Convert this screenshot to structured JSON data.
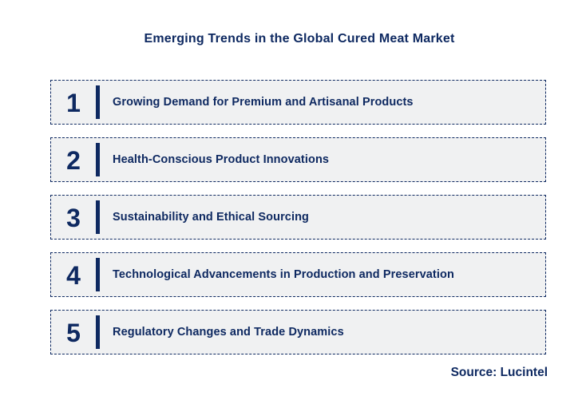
{
  "title": "Emerging Trends in the Global Cured Meat Market",
  "trends": [
    {
      "number": "1",
      "label": "Growing Demand for Premium and Artisanal Products"
    },
    {
      "number": "2",
      "label": "Health-Conscious Product Innovations"
    },
    {
      "number": "3",
      "label": "Sustainability and Ethical Sourcing"
    },
    {
      "number": "4",
      "label": "Technological Advancements in Production and Preservation"
    },
    {
      "number": "5",
      "label": "Regulatory Changes and Trade Dynamics"
    }
  ],
  "source": "Source: Lucintel",
  "colors": {
    "navy": "#0e2961",
    "row_background": "#f0f1f2",
    "page_background": "#ffffff"
  }
}
